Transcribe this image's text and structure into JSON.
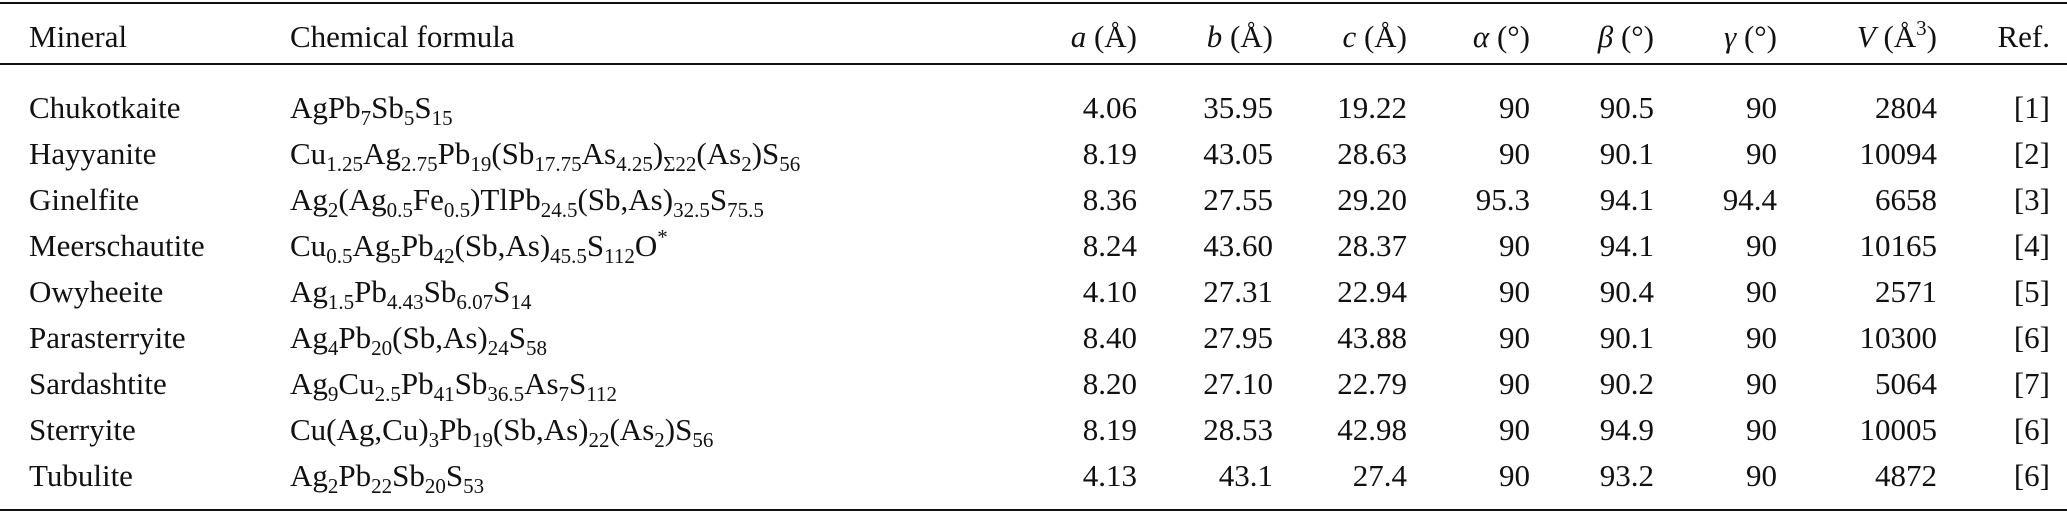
{
  "table": {
    "header": [
      "Mineral",
      "Chemical formula",
      [
        {
          "i": "a"
        },
        " (Å)"
      ],
      [
        {
          "i": "b"
        },
        " (Å)"
      ],
      [
        {
          "i": "c"
        },
        " (Å)"
      ],
      [
        {
          "i": "α"
        },
        " (°)"
      ],
      [
        {
          "i": "β"
        },
        " (°)"
      ],
      [
        {
          "i": "γ"
        },
        " (°)"
      ],
      [
        {
          "i": "V"
        },
        " (Å",
        {
          "sup": "3"
        },
        ")"
      ],
      "Ref."
    ],
    "rows": [
      [
        "Chukotkaite",
        [
          "AgPb",
          {
            "sub": "7"
          },
          "Sb",
          {
            "sub": "5"
          },
          "S",
          {
            "sub": "15"
          }
        ],
        "4.06",
        "35.95",
        "19.22",
        "90",
        "90.5",
        "90",
        "2804",
        "[1]"
      ],
      [
        "Hayyanite",
        [
          "Cu",
          {
            "sub": "1.25"
          },
          "Ag",
          {
            "sub": "2.75"
          },
          "Pb",
          {
            "sub": "19"
          },
          "(Sb",
          {
            "sub": "17.75"
          },
          "As",
          {
            "sub": "4.25"
          },
          ")",
          {
            "sub": "Σ22"
          },
          "(As",
          {
            "sub": "2"
          },
          ")S",
          {
            "sub": "56"
          }
        ],
        "8.19",
        "43.05",
        "28.63",
        "90",
        "90.1",
        "90",
        "10094",
        "[2]"
      ],
      [
        "Ginelfite",
        [
          "Ag",
          {
            "sub": "2"
          },
          "(Ag",
          {
            "sub": "0.5"
          },
          "Fe",
          {
            "sub": "0.5"
          },
          ")TlPb",
          {
            "sub": "24.5"
          },
          "(Sb,As)",
          {
            "sub": "32.5"
          },
          "S",
          {
            "sub": "75.5"
          }
        ],
        "8.36",
        "27.55",
        "29.20",
        "95.3",
        "94.1",
        "94.4",
        "6658",
        "[3]"
      ],
      [
        "Meerschautite",
        [
          "Cu",
          {
            "sub": "0.5"
          },
          "Ag",
          {
            "sub": "5"
          },
          "Pb",
          {
            "sub": "42"
          },
          "(Sb,As)",
          {
            "sub": "45.5"
          },
          "S",
          {
            "sub": "112"
          },
          "O",
          {
            "sup": "*"
          }
        ],
        "8.24",
        "43.60",
        "28.37",
        "90",
        "94.1",
        "90",
        "10165",
        "[4]"
      ],
      [
        "Owyheeite",
        [
          "Ag",
          {
            "sub": "1.5"
          },
          "Pb",
          {
            "sub": "4.43"
          },
          "Sb",
          {
            "sub": "6.07"
          },
          "S",
          {
            "sub": "14"
          }
        ],
        "4.10",
        "27.31",
        "22.94",
        "90",
        "90.4",
        "90",
        "2571",
        "[5]"
      ],
      [
        "Parasterryite",
        [
          "Ag",
          {
            "sub": "4"
          },
          "Pb",
          {
            "sub": "20"
          },
          "(Sb,As)",
          {
            "sub": "24"
          },
          "S",
          {
            "sub": "58"
          }
        ],
        "8.40",
        "27.95",
        "43.88",
        "90",
        "90.1",
        "90",
        "10300",
        "[6]"
      ],
      [
        "Sardashtite",
        [
          "Ag",
          {
            "sub": "9"
          },
          "Cu",
          {
            "sub": "2.5"
          },
          "Pb",
          {
            "sub": "41"
          },
          "Sb",
          {
            "sub": "36.5"
          },
          "As",
          {
            "sub": "7"
          },
          "S",
          {
            "sub": "112"
          }
        ],
        "8.20",
        "27.10",
        "22.79",
        "90",
        "90.2",
        "90",
        "5064",
        "[7]"
      ],
      [
        "Sterryite",
        [
          "Cu(Ag,Cu)",
          {
            "sub": "3"
          },
          "Pb",
          {
            "sub": "19"
          },
          "(Sb,As)",
          {
            "sub": "22"
          },
          "(As",
          {
            "sub": "2"
          },
          ")S",
          {
            "sub": "56"
          }
        ],
        "8.19",
        "28.53",
        "42.98",
        "90",
        "94.9",
        "90",
        "10005",
        "[6]"
      ],
      [
        "Tubulite",
        [
          "Ag",
          {
            "sub": "2"
          },
          "Pb",
          {
            "sub": "22"
          },
          "Sb",
          {
            "sub": "20"
          },
          "S",
          {
            "sub": "53"
          }
        ],
        "4.13",
        "43.1",
        "27.4",
        "90",
        "93.2",
        "90",
        "4872",
        "[6]"
      ]
    ]
  }
}
